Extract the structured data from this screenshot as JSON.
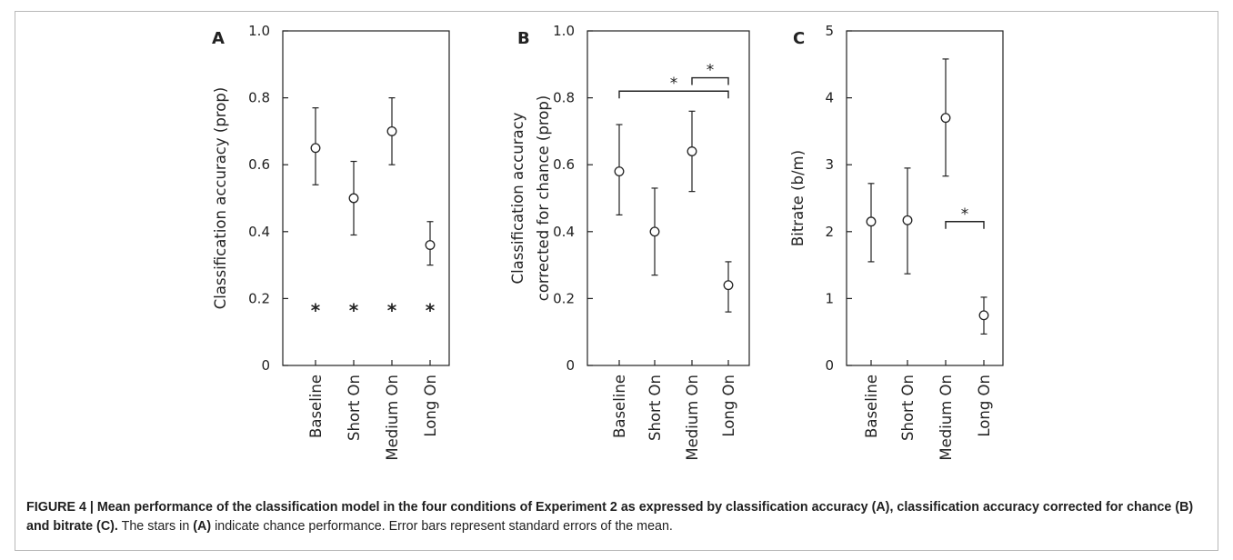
{
  "figure": {
    "caption_bold": "FIGURE 4 | Mean performance of the classification model in the four conditions of Experiment 2 as expressed by classification accuracy (A), classification accuracy corrected for chance (B) and bitrate (C).",
    "caption_text_1": " The stars in ",
    "caption_ref": "(A)",
    "caption_text_2": " indicate chance performance. Error bars represent standard errors of the mean."
  },
  "chart_data": [
    {
      "type": "scatter",
      "panel_label": "A",
      "ylabel": "Classification accuracy (prop)",
      "categories": [
        "Baseline",
        "Short On",
        "Medium On",
        "Long On"
      ],
      "ylim": [
        0,
        1.0
      ],
      "yticks": [
        0,
        0.2,
        0.4,
        0.6,
        0.8,
        1.0
      ],
      "ytick_labels": [
        "0",
        "0.2",
        "0.4",
        "0.6",
        "0.8",
        "1.0"
      ],
      "series": [
        {
          "values": [
            0.65,
            0.5,
            0.7,
            0.36
          ],
          "err_low": [
            0.54,
            0.39,
            0.6,
            0.3
          ],
          "err_high": [
            0.77,
            0.61,
            0.8,
            0.43
          ]
        }
      ],
      "chance": [
        0.167,
        0.167,
        0.167,
        0.167
      ],
      "chance_marker": "*",
      "significance": []
    },
    {
      "type": "scatter",
      "panel_label": "B",
      "ylabel_lines": [
        "Classification accuracy",
        "corrected for chance (prop)"
      ],
      "categories": [
        "Baseline",
        "Short On",
        "Medium On",
        "Long On"
      ],
      "ylim": [
        0,
        1.0
      ],
      "yticks": [
        0,
        0.2,
        0.4,
        0.6,
        0.8,
        1.0
      ],
      "ytick_labels": [
        "0",
        "0.2",
        "0.4",
        "0.6",
        "0.8",
        "1.0"
      ],
      "series": [
        {
          "values": [
            0.58,
            0.4,
            0.64,
            0.24
          ],
          "err_low": [
            0.45,
            0.27,
            0.52,
            0.16
          ],
          "err_high": [
            0.72,
            0.53,
            0.76,
            0.31
          ]
        }
      ],
      "significance": [
        {
          "from": 0,
          "to": 3,
          "y": 0.82,
          "label": "*"
        },
        {
          "from": 2,
          "to": 3,
          "y": 0.86,
          "label": "*"
        }
      ]
    },
    {
      "type": "scatter",
      "panel_label": "C",
      "ylabel": "Bitrate (b/m)",
      "categories": [
        "Baseline",
        "Short On",
        "Medium On",
        "Long On"
      ],
      "ylim": [
        0,
        5
      ],
      "yticks": [
        0,
        1,
        2,
        3,
        4,
        5
      ],
      "ytick_labels": [
        "0",
        "1",
        "2",
        "3",
        "4",
        "5"
      ],
      "series": [
        {
          "values": [
            2.15,
            2.17,
            3.7,
            0.75
          ],
          "err_low": [
            1.55,
            1.37,
            2.83,
            0.47
          ],
          "err_high": [
            2.72,
            2.95,
            4.58,
            1.02
          ]
        }
      ],
      "significance": [
        {
          "from": 2,
          "to": 3,
          "y": 2.15,
          "label": "*"
        }
      ]
    }
  ]
}
